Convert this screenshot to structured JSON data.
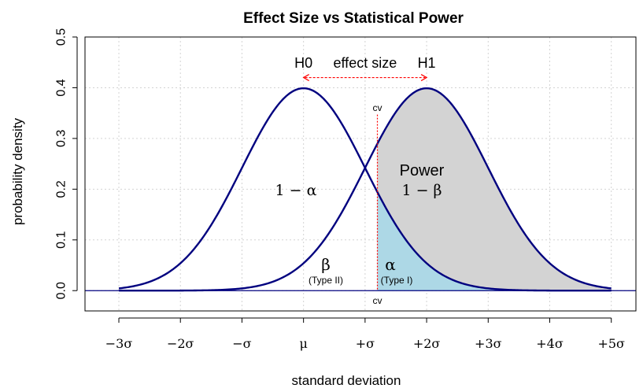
{
  "chart_data": {
    "type": "area",
    "title": "Effect Size vs Statistical Power",
    "xlabel": "standard deviation",
    "ylabel": "probability density",
    "xlim": [
      -3.55,
      5.4
    ],
    "ylim": [
      -0.04,
      0.5
    ],
    "grid": true,
    "x_ticks": [
      {
        "value": -3,
        "label": "−3σ"
      },
      {
        "value": -2,
        "label": "−2σ"
      },
      {
        "value": -1,
        "label": "−σ"
      },
      {
        "value": 0,
        "label": "μ"
      },
      {
        "value": 1,
        "label": "+σ"
      },
      {
        "value": 2,
        "label": "+2σ"
      },
      {
        "value": 3,
        "label": "+3σ"
      },
      {
        "value": 4,
        "label": "+4σ"
      },
      {
        "value": 5,
        "label": "+5σ"
      }
    ],
    "y_ticks": [
      {
        "value": 0.0,
        "label": "0.0"
      },
      {
        "value": 0.1,
        "label": "0.1"
      },
      {
        "value": 0.2,
        "label": "0.2"
      },
      {
        "value": 0.3,
        "label": "0.3"
      },
      {
        "value": 0.4,
        "label": "0.4"
      },
      {
        "value": 0.5,
        "label": "0.5"
      }
    ],
    "series": [
      {
        "name": "H0",
        "distribution": "normal",
        "mean": 0,
        "sd": 1,
        "x_range": [
          -3,
          5
        ],
        "color": "#00007f"
      },
      {
        "name": "H1",
        "distribution": "normal",
        "mean": 2,
        "sd": 1,
        "x_range": [
          -3,
          5
        ],
        "color": "#00007f"
      }
    ],
    "critical_value": 1.2,
    "shading": {
      "power_color": "#d3d3d3",
      "alpha_color": "#add8e6"
    },
    "annotations": {
      "h0": "H0",
      "h1": "H1",
      "effect_size": "effect size",
      "power": "Power",
      "one_minus_beta": "1 − β",
      "one_minus_alpha": "1 − α",
      "beta": "β",
      "type_ii": "(Type II)",
      "alpha": "α",
      "type_i": "(Type I)",
      "cv_top": "cv",
      "cv_bottom": "cv"
    },
    "colors": {
      "curve": "#00007f",
      "cv_line": "#ff0000",
      "effect_arrow": "#ff0000",
      "grid": "#d3d3d3",
      "baseline": "#00007f",
      "border": "#000000"
    }
  }
}
